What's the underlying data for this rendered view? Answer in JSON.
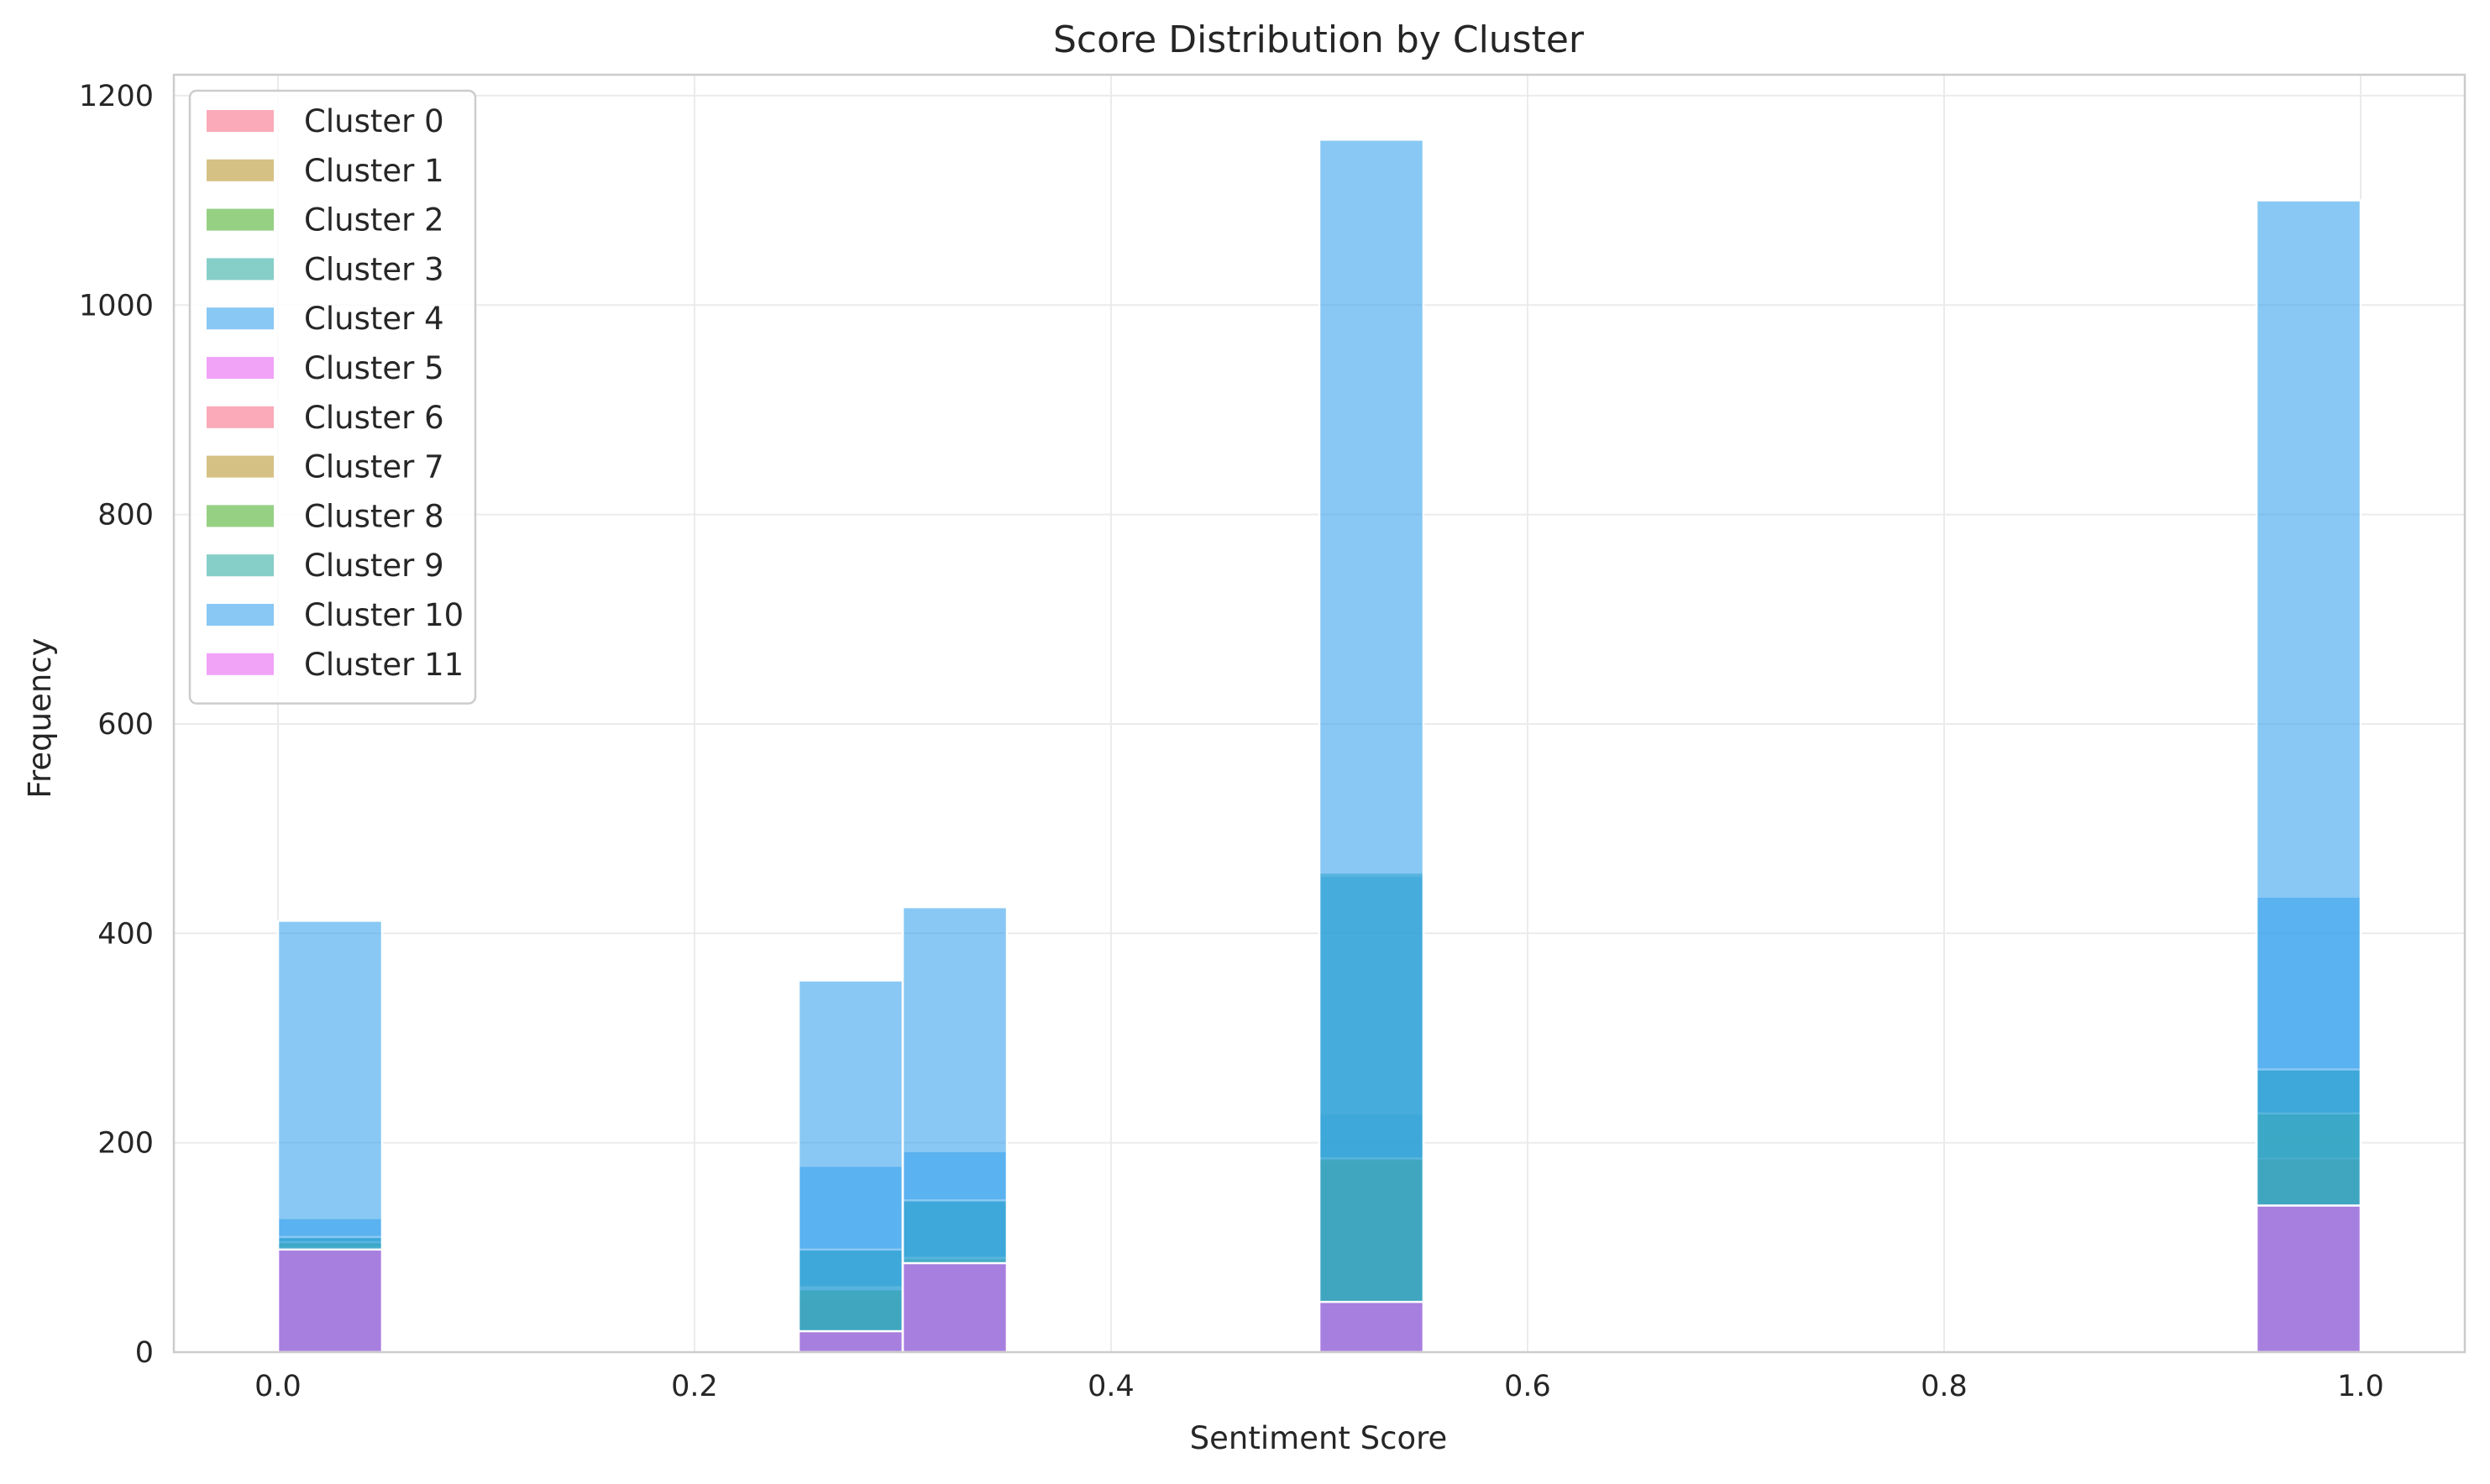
{
  "chart_data": {
    "type": "bar",
    "title": "Score Distribution by Cluster",
    "xlabel": "Sentiment Score",
    "ylabel": "Frequency",
    "xlim": [
      -0.05,
      1.05
    ],
    "ylim": [
      0,
      1220
    ],
    "xticks": [
      0.0,
      0.2,
      0.4,
      0.6,
      0.8,
      1.0
    ],
    "xtick_labels": [
      "0.0",
      "0.2",
      "0.4",
      "0.6",
      "0.8",
      "1.0"
    ],
    "yticks": [
      0,
      200,
      400,
      600,
      800,
      1000,
      1200
    ],
    "ytick_labels": [
      "0",
      "200",
      "400",
      "600",
      "800",
      "1000",
      "1200"
    ],
    "grid": true,
    "legend_position": "top-left",
    "bar_alpha": 0.6,
    "bins": [
      [
        0.0,
        0.05
      ],
      [
        0.25,
        0.3
      ],
      [
        0.3,
        0.35
      ],
      [
        0.5,
        0.55
      ],
      [
        0.95,
        1.0
      ]
    ],
    "series": [
      {
        "name": "Cluster 0",
        "color": "#f77189",
        "values": [
          98,
          20,
          85,
          48,
          140
        ]
      },
      {
        "name": "Cluster 1",
        "color": "#bb9832",
        "values": [
          100,
          50,
          88,
          180,
          185
        ]
      },
      {
        "name": "Cluster 2",
        "color": "#50b131",
        "values": [
          105,
          60,
          90,
          185,
          228
        ]
      },
      {
        "name": "Cluster 3",
        "color": "#36ada4",
        "values": [
          110,
          98,
          145,
          228,
          270
        ]
      },
      {
        "name": "Cluster 4",
        "color": "#3ba3ec",
        "values": [
          128,
          178,
          192,
          455,
          435
        ]
      },
      {
        "name": "Cluster 5",
        "color": "#e866f4",
        "values": [
          98,
          20,
          85,
          48,
          140
        ]
      },
      {
        "name": "Cluster 6",
        "color": "#f77189",
        "values": [
          98,
          20,
          85,
          48,
          140
        ]
      },
      {
        "name": "Cluster 7",
        "color": "#bb9832",
        "values": [
          100,
          62,
          88,
          185,
          185
        ]
      },
      {
        "name": "Cluster 8",
        "color": "#50b131",
        "values": [
          105,
          60,
          90,
          185,
          228
        ]
      },
      {
        "name": "Cluster 9",
        "color": "#36ada4",
        "values": [
          110,
          98,
          145,
          458,
          270
        ]
      },
      {
        "name": "Cluster 10",
        "color": "#3ba3ec",
        "values": [
          412,
          355,
          425,
          1158,
          1100
        ]
      },
      {
        "name": "Cluster 11",
        "color": "#e866f4",
        "values": [
          98,
          20,
          85,
          48,
          140
        ]
      }
    ]
  }
}
